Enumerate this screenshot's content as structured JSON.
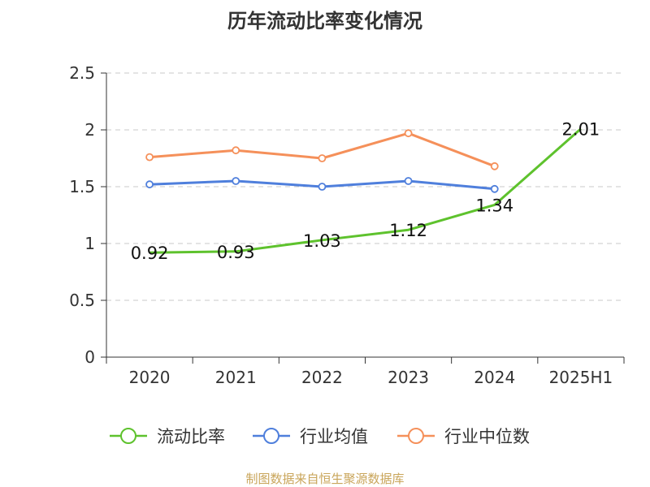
{
  "chart_data": {
    "type": "line",
    "title": "历年流动比率变化情况",
    "categories": [
      "2020",
      "2021",
      "2022",
      "2023",
      "2024",
      "2025H1"
    ],
    "ylim": [
      0,
      2.5
    ],
    "yticks": [
      "0",
      "0.5",
      "1",
      "1.5",
      "2",
      "2.5"
    ],
    "grid": true,
    "legend_position": "bottom",
    "series": [
      {
        "name": "流动比率",
        "color": "#5ec22d",
        "values": [
          0.92,
          0.93,
          1.03,
          1.12,
          1.34,
          2.01
        ],
        "labels": [
          "0.92",
          "0.93",
          "1.03",
          "1.12",
          "1.34",
          "2.01"
        ],
        "show_labels": true,
        "markers": false
      },
      {
        "name": "行业均值",
        "color": "#4f7fdc",
        "values": [
          1.52,
          1.55,
          1.5,
          1.55,
          1.48,
          null
        ],
        "show_labels": false,
        "markers": true
      },
      {
        "name": "行业中位数",
        "color": "#f5905a",
        "values": [
          1.76,
          1.82,
          1.75,
          1.97,
          1.68,
          null
        ],
        "show_labels": false,
        "markers": true
      }
    ]
  },
  "footer": {
    "source": "制图数据来自恒生聚源数据库"
  }
}
